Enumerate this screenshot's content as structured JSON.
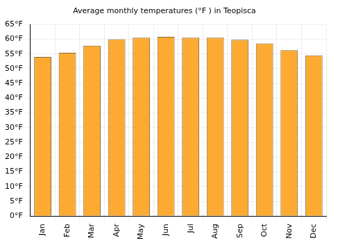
{
  "chart_data": {
    "type": "bar",
    "title": "Average monthly temperatures (°F ) in Teopisca",
    "categories": [
      "Jan",
      "Feb",
      "Mar",
      "Apr",
      "May",
      "Jun",
      "Jul",
      "Aug",
      "Sep",
      "Oct",
      "Nov",
      "Dec"
    ],
    "values": [
      54,
      55.4,
      57.8,
      60,
      60.5,
      60.8,
      60.5,
      60.5,
      59.8,
      58.6,
      56.3,
      54.5
    ],
    "color": "#fcaa32",
    "ylim": [
      0,
      65
    ],
    "yticks": [
      {
        "value": 0,
        "label": "0°F"
      },
      {
        "value": 5,
        "label": "5°F"
      },
      {
        "value": 10,
        "label": "10°F"
      },
      {
        "value": 15,
        "label": "15°F"
      },
      {
        "value": 20,
        "label": "20°F"
      },
      {
        "value": 25,
        "label": "25°F"
      },
      {
        "value": 30,
        "label": "30°F"
      },
      {
        "value": 35,
        "label": "35°F"
      },
      {
        "value": 40,
        "label": "40°F"
      },
      {
        "value": 45,
        "label": "45°F"
      },
      {
        "value": 50,
        "label": "50°F"
      },
      {
        "value": 55,
        "label": "55°F"
      },
      {
        "value": 60,
        "label": "60°F"
      },
      {
        "value": 65,
        "label": "65°F"
      }
    ],
    "grid": true
  }
}
